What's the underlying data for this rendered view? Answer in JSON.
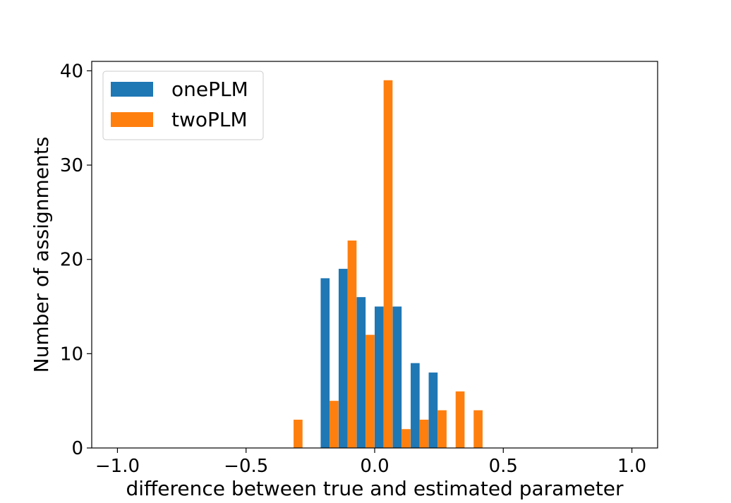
{
  "chart_data": {
    "type": "bar",
    "title": "",
    "xlabel": "difference between true and estimated parameter",
    "ylabel": "Number of assignments",
    "xlim": [
      -1.1,
      1.1
    ],
    "ylim": [
      0,
      41
    ],
    "xticks": [
      -1.0,
      -0.5,
      0.0,
      0.5,
      1.0
    ],
    "xtick_labels": [
      "−1.0",
      "−0.5",
      "0.0",
      "0.5",
      "1.0"
    ],
    "yticks": [
      0,
      10,
      20,
      30,
      40
    ],
    "ytick_labels": [
      "0",
      "10",
      "20",
      "30",
      "40"
    ],
    "grid": false,
    "legend_position": "top-left",
    "bin_width": 0.0695,
    "bin_starts": [
      -0.35,
      -0.28,
      -0.21,
      -0.14,
      -0.07,
      0.0,
      0.07,
      0.14,
      0.21,
      0.28
    ],
    "series": [
      {
        "name": "onePLM",
        "color": "#1f77b4",
        "values": [
          0,
          0,
          18,
          19,
          16,
          15,
          15,
          9,
          8,
          0
        ]
      },
      {
        "name": "twoPLM",
        "color": "#ff7f0e",
        "values": [
          3,
          0,
          5,
          22,
          12,
          39,
          2,
          3,
          4,
          6,
          4
        ]
      }
    ],
    "series_bins": {
      "twoPLM": [
        -0.35,
        -0.28,
        -0.21,
        -0.14,
        -0.07,
        0.0,
        0.07,
        0.14,
        0.21,
        0.28,
        0.35
      ]
    }
  }
}
